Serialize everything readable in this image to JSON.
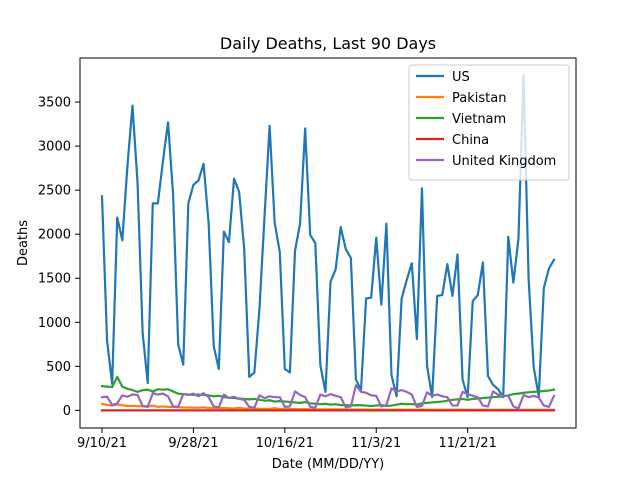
{
  "chart_data": {
    "type": "line",
    "title": "Daily Deaths, Last 90 Days",
    "xlabel": "Date (MM/DD/YY)",
    "ylabel": "Deaths",
    "x_start": "9/10/21",
    "x_end": "12/8/21",
    "x_ticks": [
      {
        "date": "9/10/21",
        "label": "9/10/21"
      },
      {
        "date": "9/28/21",
        "label": "9/28/21"
      },
      {
        "date": "10/16/21",
        "label": "10/16/21"
      },
      {
        "date": "11/3/21",
        "label": "11/3/21"
      },
      {
        "date": "11/21/21",
        "label": "11/21/21"
      }
    ],
    "y_ticks": [
      0,
      500,
      1000,
      1500,
      2000,
      2500,
      3000,
      3500
    ],
    "ylim": [
      -200,
      4000
    ],
    "grid": false,
    "legend_position": "top-right",
    "series": [
      {
        "name": "US",
        "color": "#1f77b4",
        "values": [
          2430,
          790,
          300,
          2190,
          1930,
          2770,
          3460,
          2580,
          880,
          310,
          2350,
          2350,
          2830,
          3270,
          2450,
          750,
          520,
          2350,
          2560,
          2610,
          2800,
          2120,
          730,
          470,
          2030,
          1910,
          2630,
          2480,
          1830,
          380,
          430,
          1150,
          2200,
          3230,
          2130,
          1800,
          470,
          430,
          1810,
          2120,
          3200,
          1990,
          1900,
          510,
          210,
          1460,
          1600,
          2080,
          1830,
          1730,
          350,
          230,
          1270,
          1280,
          1960,
          1200,
          2120,
          400,
          160,
          1270,
          1480,
          1670,
          810,
          2520,
          510,
          150,
          1300,
          1310,
          1660,
          1300,
          1770,
          350,
          150,
          1240,
          1310,
          1680,
          390,
          290,
          240,
          150,
          1970,
          1450,
          1950,
          3810,
          1490,
          490,
          160,
          1390,
          1610,
          1710
        ]
      },
      {
        "name": "Pakistan",
        "color": "#ff7f0e",
        "values": [
          75,
          62,
          55,
          68,
          58,
          50,
          52,
          48,
          46,
          44,
          55,
          40,
          45,
          40,
          38,
          35,
          33,
          32,
          31,
          30,
          35,
          28,
          27,
          25,
          28,
          24,
          22,
          30,
          21,
          20,
          20,
          18,
          17,
          16,
          25,
          15,
          18,
          16,
          14,
          13,
          15,
          12,
          12,
          11,
          10,
          12,
          11,
          11,
          10,
          10,
          10,
          9,
          10,
          9,
          9,
          9,
          8,
          8,
          9,
          8,
          8,
          8,
          8,
          10,
          8,
          7,
          8,
          7,
          8,
          7,
          7,
          7,
          6,
          7,
          6,
          7,
          6,
          6,
          6,
          7,
          6,
          6,
          7,
          6,
          6,
          6,
          6,
          6,
          6,
          6
        ]
      },
      {
        "name": "Vietnam",
        "color": "#2ca02c",
        "values": [
          275,
          270,
          265,
          380,
          270,
          245,
          230,
          210,
          230,
          235,
          215,
          240,
          235,
          240,
          215,
          190,
          185,
          180,
          175,
          180,
          175,
          170,
          160,
          165,
          150,
          145,
          140,
          135,
          130,
          125,
          130,
          120,
          110,
          115,
          100,
          105,
          100,
          95,
          90,
          85,
          95,
          80,
          75,
          70,
          75,
          65,
          70,
          60,
          60,
          55,
          60,
          58,
          55,
          50,
          55,
          60,
          50,
          55,
          65,
          75,
          70,
          72,
          65,
          80,
          85,
          90,
          95,
          100,
          110,
          120,
          125,
          130,
          120,
          130,
          135,
          140,
          145,
          150,
          155,
          160,
          170,
          185,
          190,
          200,
          205,
          210,
          215,
          220,
          225,
          235
        ]
      },
      {
        "name": "China",
        "color": "#d62728",
        "values": [
          0,
          0,
          0,
          0,
          0,
          0,
          0,
          0,
          0,
          0,
          0,
          0,
          0,
          0,
          0,
          0,
          0,
          0,
          0,
          0,
          0,
          0,
          0,
          0,
          0,
          0,
          0,
          0,
          0,
          0,
          0,
          0,
          0,
          0,
          0,
          0,
          0,
          0,
          0,
          0,
          0,
          0,
          0,
          0,
          0,
          0,
          0,
          0,
          0,
          0,
          0,
          0,
          0,
          0,
          0,
          0,
          0,
          0,
          0,
          0,
          0,
          0,
          0,
          0,
          0,
          0,
          0,
          0,
          0,
          0,
          0,
          0,
          0,
          0,
          0,
          0,
          0,
          0,
          0,
          0,
          0,
          0,
          0,
          0,
          0,
          0,
          0,
          0,
          0,
          0
        ]
      },
      {
        "name": "United Kingdom",
        "color": "#9467bd",
        "values": [
          150,
          155,
          60,
          80,
          170,
          155,
          180,
          175,
          50,
          40,
          195,
          180,
          190,
          160,
          45,
          40,
          185,
          175,
          190,
          160,
          195,
          150,
          45,
          35,
          180,
          140,
          155,
          130,
          120,
          40,
          30,
          170,
          140,
          160,
          150,
          150,
          40,
          45,
          215,
          175,
          150,
          40,
          30,
          180,
          160,
          185,
          165,
          150,
          35,
          45,
          285,
          210,
          200,
          170,
          165,
          45,
          60,
          250,
          215,
          230,
          210,
          180,
          40,
          50,
          205,
          165,
          180,
          160,
          150,
          55,
          55,
          210,
          185,
          165,
          150,
          55,
          45,
          215,
          180,
          165,
          165,
          45,
          20,
          175,
          150,
          165,
          145,
          55,
          40,
          165
        ]
      }
    ]
  }
}
